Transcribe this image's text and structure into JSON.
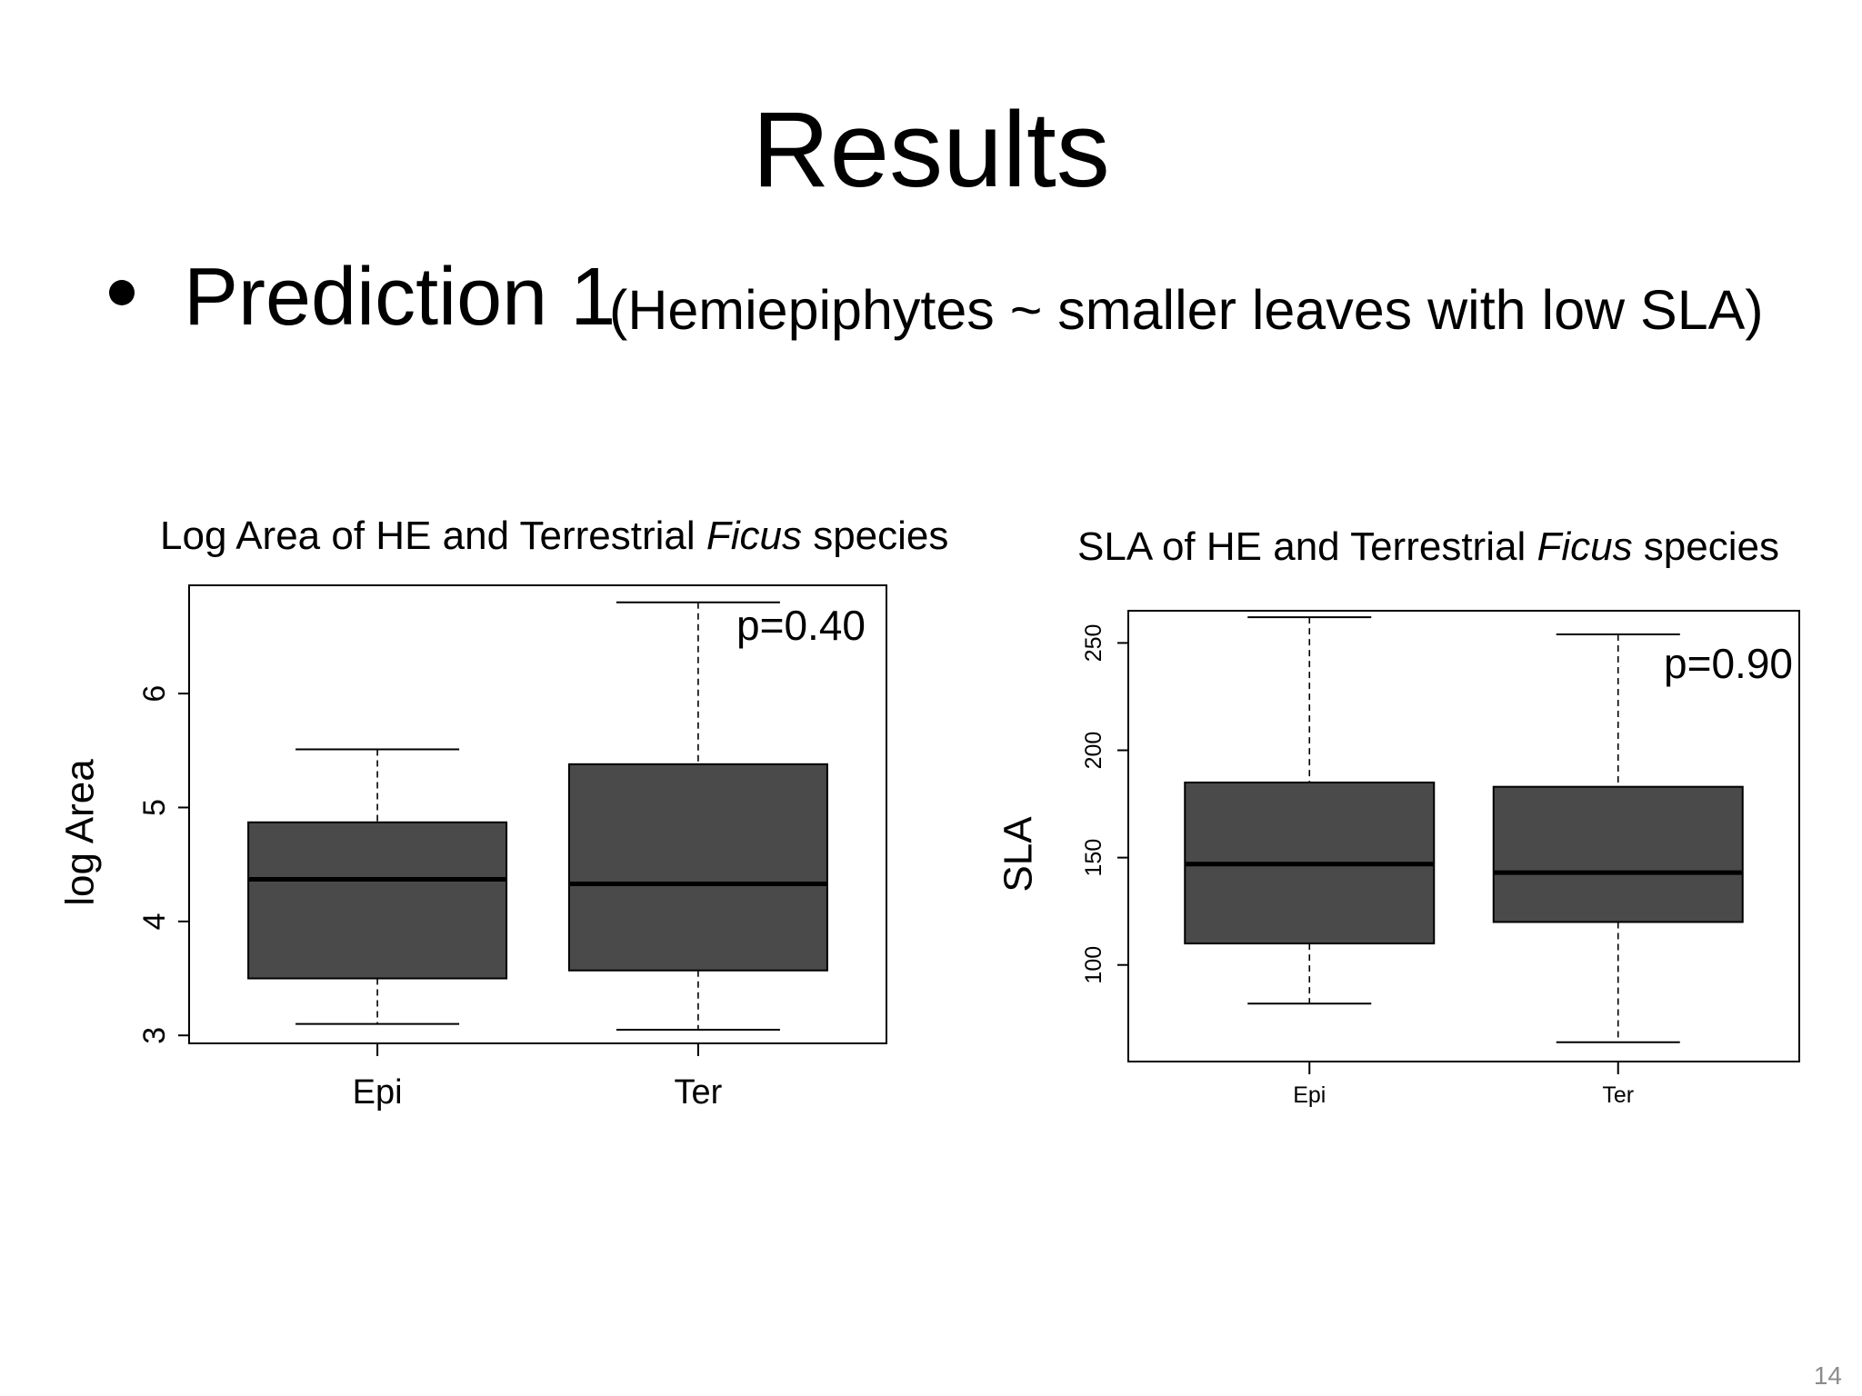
{
  "slide": {
    "title": "Results",
    "bullet_main": "Prediction 1",
    "bullet_sub": "(Hemiepiphytes ~ smaller leaves with low SLA)",
    "page_number": "14"
  },
  "chart_data": [
    {
      "type": "boxplot",
      "title_prefix": "Log Area of HE and Terrestrial ",
      "title_italic": "Ficus",
      "title_suffix": " species",
      "ylabel": "log  Area",
      "xlabel": "",
      "categories": [
        "Epi",
        "Ter"
      ],
      "ylim": [
        2.93,
        6.95
      ],
      "yticks": [
        3,
        4,
        5,
        6
      ],
      "annotation": "p=0.40",
      "box_color": "#4a4a4a",
      "boxes": [
        {
          "name": "Epi",
          "whisker_low": 3.1,
          "q1": 3.5,
          "median": 4.37,
          "q3": 4.87,
          "whisker_high": 5.51
        },
        {
          "name": "Ter",
          "whisker_low": 3.05,
          "q1": 3.57,
          "median": 4.33,
          "q3": 5.38,
          "whisker_high": 6.8
        }
      ]
    },
    {
      "type": "boxplot",
      "title_prefix": "SLA of HE and Terrestrial ",
      "title_italic": "Ficus",
      "title_suffix": " species",
      "ylabel": "SLA",
      "xlabel": "",
      "categories": [
        "Epi",
        "Ter"
      ],
      "ylim": [
        55,
        265
      ],
      "yticks": [
        100,
        150,
        200,
        250
      ],
      "annotation": "p=0.90",
      "box_color": "#4a4a4a",
      "boxes": [
        {
          "name": "Epi",
          "whisker_low": 82,
          "q1": 110,
          "median": 147,
          "q3": 185,
          "whisker_high": 262
        },
        {
          "name": "Ter",
          "whisker_low": 64,
          "q1": 120,
          "median": 143,
          "q3": 183,
          "whisker_high": 254
        }
      ]
    }
  ]
}
